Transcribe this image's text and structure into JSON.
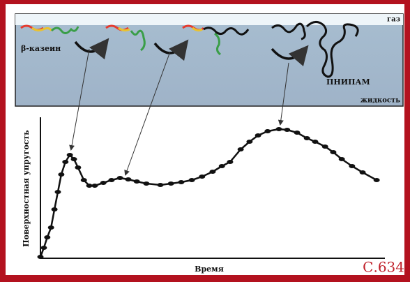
{
  "chart_data": {
    "type": "line",
    "x_label": "Время",
    "y_label": "Поверхностная упругость",
    "x": [
      0,
      1.0,
      2.0,
      3.1,
      4.1,
      5.1,
      6.1,
      7.3,
      8.6,
      9.8,
      11.0,
      12.7,
      14.3,
      15.9,
      18.4,
      20.8,
      23.3,
      25.7,
      28.2,
      31.0,
      35.1,
      38.2,
      41.2,
      44.3,
      47.3,
      50.4,
      53.1,
      55.5,
      58.6,
      61.2,
      63.7,
      66.5,
      69.8,
      72.2,
      75.1,
      78.0,
      80.4,
      83.3,
      85.7,
      88.2,
      91.2,
      94.3,
      98.4
    ],
    "values": [
      1,
      7.5,
      15,
      22,
      35,
      47.5,
      60,
      69,
      74,
      71,
      65,
      56,
      52,
      52,
      54,
      56,
      57.5,
      56.5,
      55,
      53.5,
      52.5,
      53.5,
      54.5,
      56,
      58.5,
      62,
      66,
      69,
      78,
      83.5,
      88,
      91,
      92.5,
      92,
      90,
      86,
      83.5,
      80,
      76,
      71,
      66,
      61.5,
      56
    ],
    "color": "#111111",
    "xlim": [
      0,
      100
    ],
    "ylim": [
      0,
      100
    ]
  },
  "schematic": {
    "gas_label": "газ",
    "liquid_label": "жидкость",
    "protein_label": "β-казеин",
    "polymer_label": "ПНИПАМ"
  },
  "page_label": "С.634"
}
